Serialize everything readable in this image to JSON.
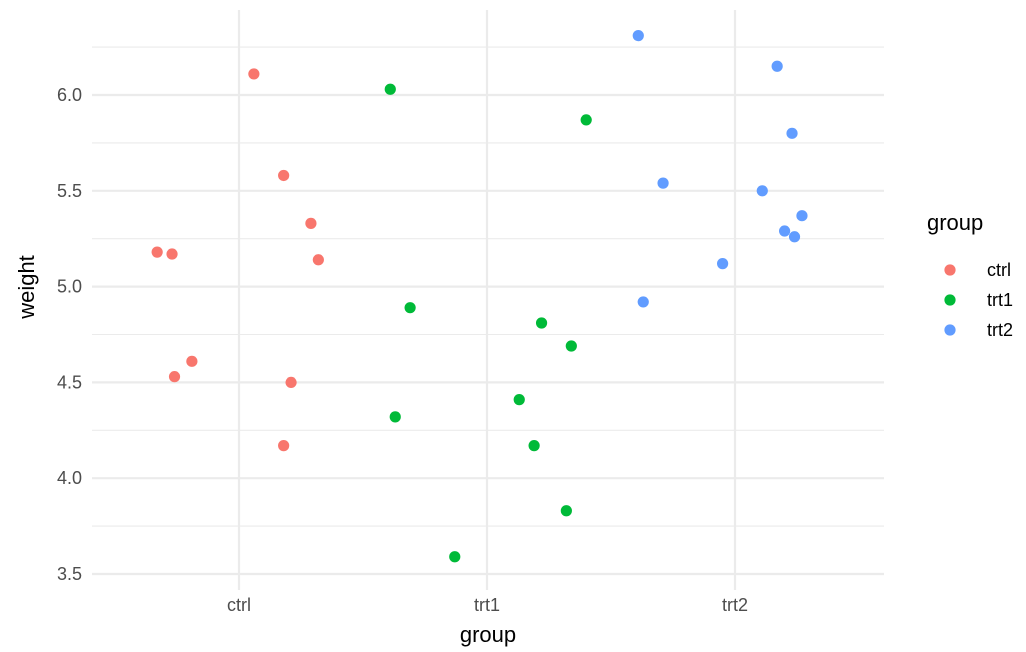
{
  "chart_data": {
    "type": "scatter",
    "title": "",
    "xlabel": "group",
    "ylabel": "weight",
    "categories": [
      "ctrl",
      "trt1",
      "trt2"
    ],
    "ylim": [
      3.45,
      6.4
    ],
    "y_ticks": [
      3.5,
      4.0,
      4.5,
      5.0,
      5.5,
      6.0
    ],
    "y_tick_labels": [
      "3.5",
      "4.0",
      "4.5",
      "5.0",
      "5.5",
      "6.0"
    ],
    "grid": true,
    "legend": {
      "title": "group",
      "position": "right"
    },
    "series": [
      {
        "name": "ctrl",
        "color": "#F8766D",
        "points": [
          {
            "x": 1.06,
            "y": 6.11
          },
          {
            "x": 1.18,
            "y": 5.58
          },
          {
            "x": 1.29,
            "y": 5.33
          },
          {
            "x": 0.67,
            "y": 5.18
          },
          {
            "x": 0.73,
            "y": 5.17
          },
          {
            "x": 1.32,
            "y": 5.14
          },
          {
            "x": 0.81,
            "y": 4.61
          },
          {
            "x": 0.74,
            "y": 4.53
          },
          {
            "x": 1.21,
            "y": 4.5
          },
          {
            "x": 1.18,
            "y": 4.17
          }
        ]
      },
      {
        "name": "trt1",
        "color": "#00BA38",
        "points": [
          {
            "x": 1.61,
            "y": 6.03
          },
          {
            "x": 2.4,
            "y": 5.87
          },
          {
            "x": 1.69,
            "y": 4.89
          },
          {
            "x": 2.22,
            "y": 4.81
          },
          {
            "x": 2.34,
            "y": 4.69
          },
          {
            "x": 2.13,
            "y": 4.41
          },
          {
            "x": 1.63,
            "y": 4.32
          },
          {
            "x": 2.19,
            "y": 4.17
          },
          {
            "x": 2.32,
            "y": 3.83
          },
          {
            "x": 1.87,
            "y": 3.59
          }
        ]
      },
      {
        "name": "trt2",
        "color": "#619CFF",
        "points": [
          {
            "x": 2.61,
            "y": 6.31
          },
          {
            "x": 3.17,
            "y": 6.15
          },
          {
            "x": 3.23,
            "y": 5.8
          },
          {
            "x": 2.71,
            "y": 5.54
          },
          {
            "x": 3.11,
            "y": 5.5
          },
          {
            "x": 3.27,
            "y": 5.37
          },
          {
            "x": 3.2,
            "y": 5.29
          },
          {
            "x": 3.24,
            "y": 5.26
          },
          {
            "x": 2.95,
            "y": 5.12
          },
          {
            "x": 2.63,
            "y": 4.92
          }
        ]
      }
    ]
  }
}
